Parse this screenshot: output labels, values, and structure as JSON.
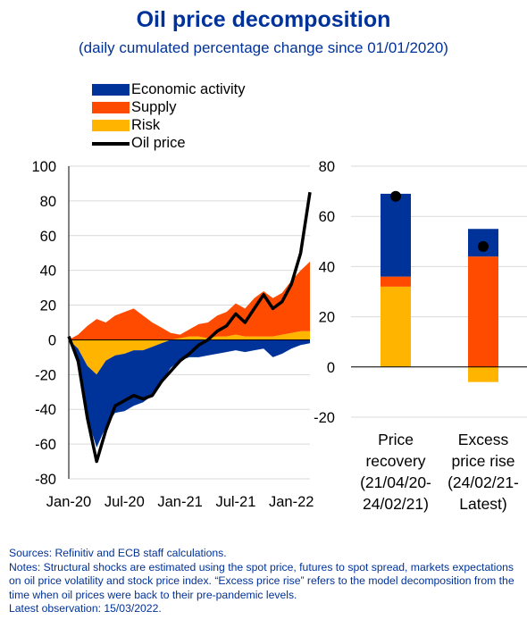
{
  "header": {
    "title": "Oil price decomposition",
    "subtitle": "(daily cumulated percentage change since 01/01/2020)"
  },
  "colors": {
    "economic_activity": "#003399",
    "supply": "#ff4b00",
    "risk": "#ffb400",
    "oil_price": "#000000",
    "title": "#003299"
  },
  "chart_data": [
    {
      "type": "area",
      "x_tick_labels": [
        "Jan-20",
        "Jul-20",
        "Jan-21",
        "Jul-21",
        "Jan-22"
      ],
      "x": [
        "2020-01",
        "2020-02",
        "2020-03",
        "2020-04",
        "2020-05",
        "2020-06",
        "2020-07",
        "2020-08",
        "2020-09",
        "2020-10",
        "2020-11",
        "2020-12",
        "2021-01",
        "2021-02",
        "2021-03",
        "2021-04",
        "2021-05",
        "2021-06",
        "2021-07",
        "2021-08",
        "2021-09",
        "2021-10",
        "2021-11",
        "2021-12",
        "2022-01",
        "2022-02",
        "2022-03"
      ],
      "ylim": [
        -80,
        100
      ],
      "y_ticks": [
        -80,
        -60,
        -40,
        -20,
        0,
        20,
        40,
        60,
        80,
        100
      ],
      "grid": true,
      "legend_position": "top-left",
      "series": [
        {
          "name": "Economic activity",
          "values": [
            0,
            -10,
            -30,
            -42,
            -38,
            -33,
            -33,
            -32,
            -30,
            -28,
            -22,
            -16,
            -12,
            -10,
            -10,
            -9,
            -8,
            -7,
            -6,
            -7,
            -6,
            -5,
            -10,
            -8,
            -5,
            -3,
            -2
          ]
        },
        {
          "name": "Supply",
          "values": [
            0,
            3,
            8,
            12,
            10,
            14,
            16,
            18,
            14,
            10,
            7,
            4,
            2,
            4,
            7,
            9,
            12,
            14,
            18,
            16,
            22,
            26,
            22,
            24,
            30,
            35,
            40
          ]
        },
        {
          "name": "Risk",
          "values": [
            0,
            -5,
            -15,
            -20,
            -12,
            -9,
            -8,
            -6,
            -6,
            -4,
            -2,
            0,
            1,
            2,
            2,
            1,
            2,
            2,
            3,
            2,
            2,
            2,
            2,
            3,
            4,
            5,
            5
          ]
        },
        {
          "name": "Oil price",
          "values": [
            2,
            -12,
            -45,
            -70,
            -52,
            -38,
            -35,
            -32,
            -34,
            -32,
            -24,
            -18,
            -12,
            -8,
            -3,
            0,
            5,
            8,
            15,
            10,
            18,
            26,
            18,
            22,
            32,
            50,
            85
          ]
        }
      ]
    },
    {
      "type": "bar",
      "stacked": true,
      "categories": [
        [
          "Price",
          "recovery",
          "(21/04/20-",
          "24/02/21)"
        ],
        [
          "Excess",
          "price rise",
          "(24/02/21-",
          "Latest)"
        ]
      ],
      "ylim": [
        -20,
        80
      ],
      "y_ticks": [
        -20,
        0,
        20,
        40,
        60,
        80
      ],
      "series": [
        {
          "name": "Risk",
          "values": [
            32,
            -6
          ]
        },
        {
          "name": "Supply",
          "values": [
            4,
            44
          ]
        },
        {
          "name": "Economic activity",
          "values": [
            33,
            11
          ]
        }
      ],
      "oil_price": [
        68,
        48
      ]
    }
  ],
  "legend": [
    {
      "label": "Economic activity",
      "key": "economic_activity"
    },
    {
      "label": "Supply",
      "key": "supply"
    },
    {
      "label": "Risk",
      "key": "risk"
    },
    {
      "label": "Oil price",
      "key": "oil_price"
    }
  ],
  "notes": {
    "sources": "Sources: Refinitiv and ECB staff calculations.",
    "notes": "Notes: Structural shocks are estimated using the spot price, futures to spot spread, markets expectations on oil price volatility and stock price index. “Excess price rise” refers to the model decomposition from the time when oil prices were back to their pre-pandemic levels.",
    "latest": "Latest observation: 15/03/2022."
  }
}
